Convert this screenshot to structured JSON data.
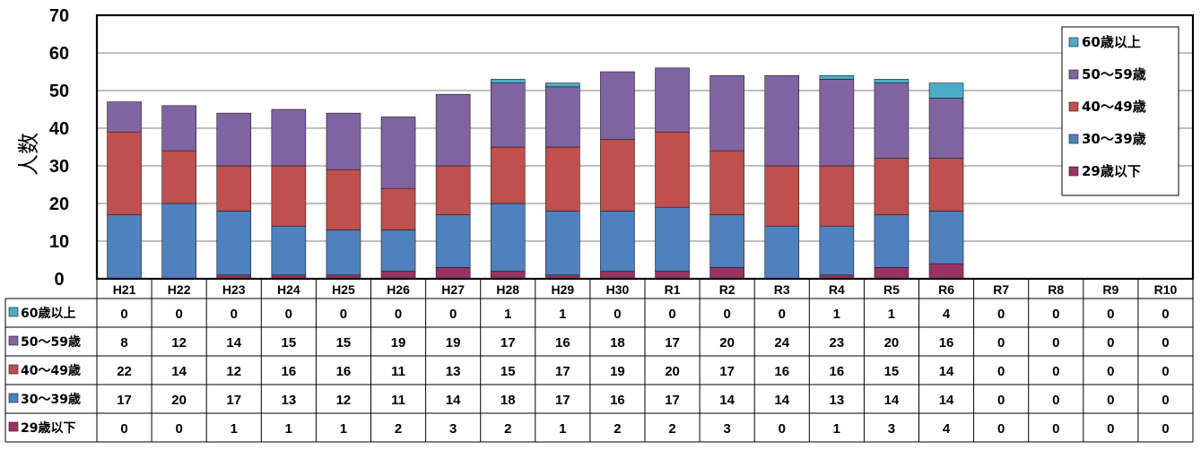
{
  "chart_data": {
    "type": "bar",
    "stacked": true,
    "ylabel": "人数",
    "ylim": [
      0,
      70
    ],
    "yticks": [
      0,
      10,
      20,
      30,
      40,
      50,
      60,
      70
    ],
    "grid": true,
    "legend_position": "top-right",
    "categories": [
      "H21",
      "H22",
      "H23",
      "H24",
      "H25",
      "H26",
      "H27",
      "H28",
      "H29",
      "H30",
      "R1",
      "R2",
      "R3",
      "R4",
      "R5",
      "R6",
      "R7",
      "R8",
      "R9",
      "R10"
    ],
    "series": [
      {
        "name": "29歳以下",
        "color": "#993366",
        "values": [
          0,
          0,
          1,
          1,
          1,
          2,
          3,
          2,
          1,
          2,
          2,
          3,
          0,
          1,
          3,
          4,
          0,
          0,
          0,
          0
        ]
      },
      {
        "name": "30～39歳",
        "color": "#4f81bd",
        "values": [
          17,
          20,
          17,
          13,
          12,
          11,
          14,
          18,
          17,
          16,
          17,
          14,
          14,
          13,
          14,
          14,
          0,
          0,
          0,
          0
        ]
      },
      {
        "name": "40～49歳",
        "color": "#c0504d",
        "values": [
          22,
          14,
          12,
          16,
          16,
          11,
          13,
          15,
          17,
          19,
          20,
          17,
          16,
          16,
          15,
          14,
          0,
          0,
          0,
          0
        ]
      },
      {
        "name": "50～59歳",
        "color": "#8064a2",
        "values": [
          8,
          12,
          14,
          15,
          15,
          19,
          19,
          17,
          16,
          18,
          17,
          20,
          24,
          23,
          20,
          16,
          0,
          0,
          0,
          0
        ]
      },
      {
        "name": "60歳以上",
        "color": "#4bacc6",
        "values": [
          0,
          0,
          0,
          0,
          0,
          0,
          0,
          1,
          1,
          0,
          0,
          0,
          0,
          1,
          1,
          4,
          0,
          0,
          0,
          0
        ]
      }
    ],
    "table_row_order": [
      "60歳以上",
      "50～59歳",
      "40～49歳",
      "30～39歳",
      "29歳以下"
    ]
  }
}
